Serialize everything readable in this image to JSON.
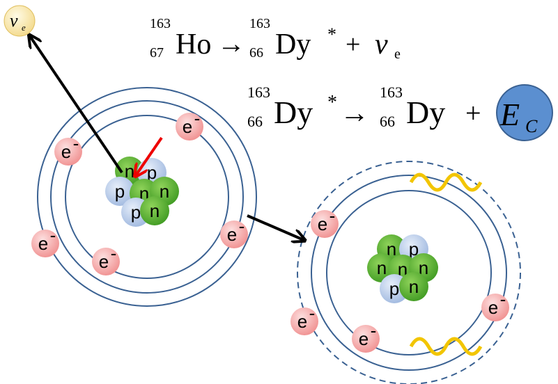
{
  "neutrino": {
    "symbol": "ν",
    "subscript": "e"
  },
  "equations": [
    {
      "parent": {
        "mass": "163",
        "atomic": "67",
        "element": "Ho"
      },
      "arrow": "→",
      "product": {
        "mass": "163",
        "atomic": "66",
        "element": "Dy",
        "excited": "*"
      },
      "plus": "+",
      "emitted": {
        "symbol": "ν",
        "subscript": "e"
      }
    },
    {
      "parent": {
        "mass": "163",
        "atomic": "66",
        "element": "Dy",
        "excited": "*"
      },
      "arrow": "→",
      "product": {
        "mass": "163",
        "atomic": "66",
        "element": "Dy"
      },
      "plus": "+",
      "emitted": {
        "symbol": "E",
        "subscript": "C"
      }
    }
  ],
  "atoms": [
    {
      "electrons": [
        {
          "symbol": "e",
          "charge": "-"
        },
        {
          "symbol": "e",
          "charge": "-"
        },
        {
          "symbol": "e",
          "charge": "-"
        },
        {
          "symbol": "e",
          "charge": "-"
        },
        {
          "symbol": "e",
          "charge": "-"
        }
      ],
      "nucleons": [
        "n",
        "p",
        "p",
        "n",
        "n",
        "p",
        "n"
      ]
    },
    {
      "electrons": [
        {
          "symbol": "e",
          "charge": "-"
        },
        {
          "symbol": "e",
          "charge": "-"
        },
        {
          "symbol": "e",
          "charge": "-"
        },
        {
          "symbol": "e",
          "charge": "-"
        }
      ],
      "nucleons": [
        "n",
        "p",
        "n",
        "n",
        "n",
        "p",
        "n"
      ]
    }
  ]
}
